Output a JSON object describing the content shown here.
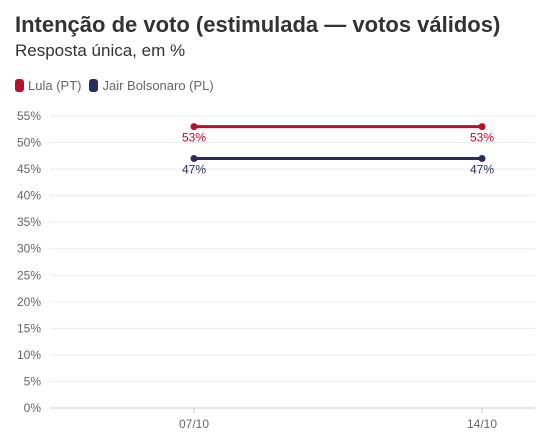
{
  "header": {
    "title": "Intenção de voto (estimulada — votos válidos)",
    "subtitle": "Resposta única, em %"
  },
  "legend": {
    "items": [
      {
        "label": "Lula (PT)",
        "color": "#b5122e"
      },
      {
        "label": "Jair Bolsonaro (PL)",
        "color": "#2a2c5e"
      }
    ]
  },
  "chart_data": {
    "type": "line",
    "title": "Intenção de voto (estimulada — votos válidos)",
    "subtitle": "Resposta única, em %",
    "x": [
      "07/10",
      "14/10"
    ],
    "series": [
      {
        "name": "Lula (PT)",
        "color": "#b5122e",
        "values": [
          53,
          53
        ],
        "labels": [
          "53%",
          "53%"
        ],
        "label_position": "below"
      },
      {
        "name": "Jair Bolsonaro (PL)",
        "color": "#2a2c5e",
        "values": [
          47,
          47
        ],
        "labels": [
          "47%",
          "47%"
        ],
        "label_position": "below"
      }
    ],
    "ylim": [
      0,
      55
    ],
    "yticks": [
      0,
      5,
      10,
      15,
      20,
      25,
      30,
      35,
      40,
      45,
      50,
      55
    ],
    "ytick_labels": [
      "0%",
      "5%",
      "10%",
      "15%",
      "20%",
      "25%",
      "30%",
      "35%",
      "40%",
      "45%",
      "50%",
      "55%"
    ],
    "grid": true,
    "legend_position": "top-left"
  }
}
